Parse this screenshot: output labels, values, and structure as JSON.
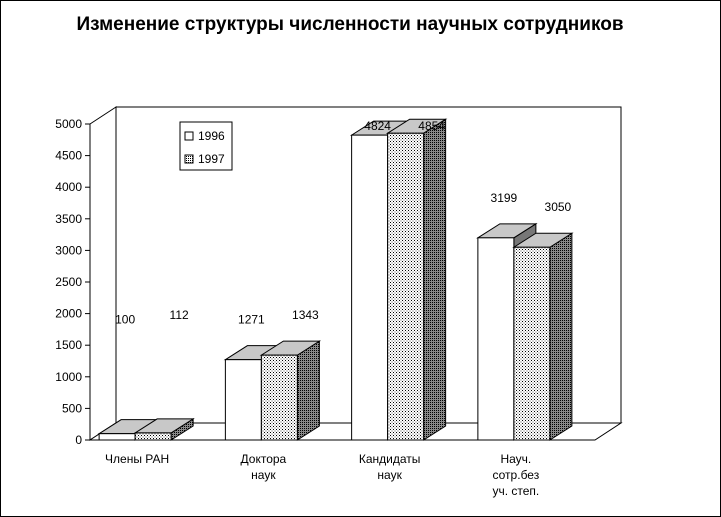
{
  "chart_data": {
    "type": "bar",
    "title": "Изменение структуры численности научных сотрудников",
    "categories": [
      [
        "Члены РАН"
      ],
      [
        "Доктора",
        "наук"
      ],
      [
        "Кандидаты",
        "наук"
      ],
      [
        "Науч.",
        "сотр.без",
        "уч. степ."
      ]
    ],
    "series": [
      {
        "name": "1996",
        "values": [
          100,
          1271,
          4824,
          3199
        ],
        "fill": "white"
      },
      {
        "name": "1997",
        "values": [
          112,
          1343,
          4854,
          3050
        ],
        "fill": "dotted"
      }
    ],
    "value_labels": [
      [
        "100",
        "1271",
        "4824",
        "3199"
      ],
      [
        "112",
        "1343",
        "4854",
        "3050"
      ]
    ],
    "ylim": [
      0,
      5000
    ],
    "yticks": [
      0,
      500,
      1000,
      1500,
      2000,
      2500,
      3000,
      3500,
      4000,
      4500,
      5000
    ],
    "legend_position": "top-left",
    "three_d": true,
    "grid": false
  }
}
